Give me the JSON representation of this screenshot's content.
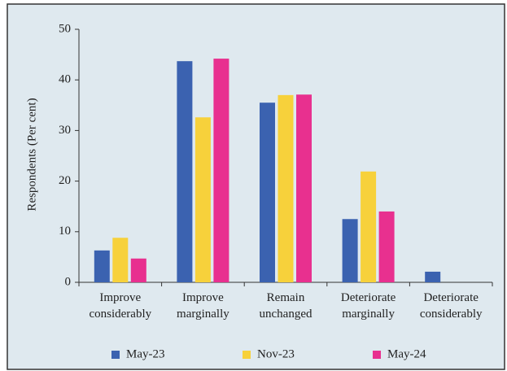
{
  "chart_data": {
    "type": "bar",
    "y_label": "Respondents (Per cent)",
    "categories": [
      "Improve considerably",
      "Improve marginally",
      "Remain unchanged",
      "Deteriorate marginally",
      "Deteriorate considerably"
    ],
    "series": [
      {
        "name": "May-23",
        "color": "#3b62b0",
        "values": [
          6.3,
          43.7,
          35.5,
          12.5,
          2.1
        ]
      },
      {
        "name": "Nov-23",
        "color": "#f7d13b",
        "values": [
          8.8,
          32.6,
          37.0,
          21.9,
          0
        ]
      },
      {
        "name": "May-24",
        "color": "#e8308f",
        "values": [
          4.7,
          44.2,
          37.1,
          14.0,
          0
        ]
      }
    ],
    "ylim": [
      0,
      50
    ],
    "yticks": [
      0,
      10,
      20,
      30,
      40,
      50
    ],
    "legend": "bottom"
  }
}
